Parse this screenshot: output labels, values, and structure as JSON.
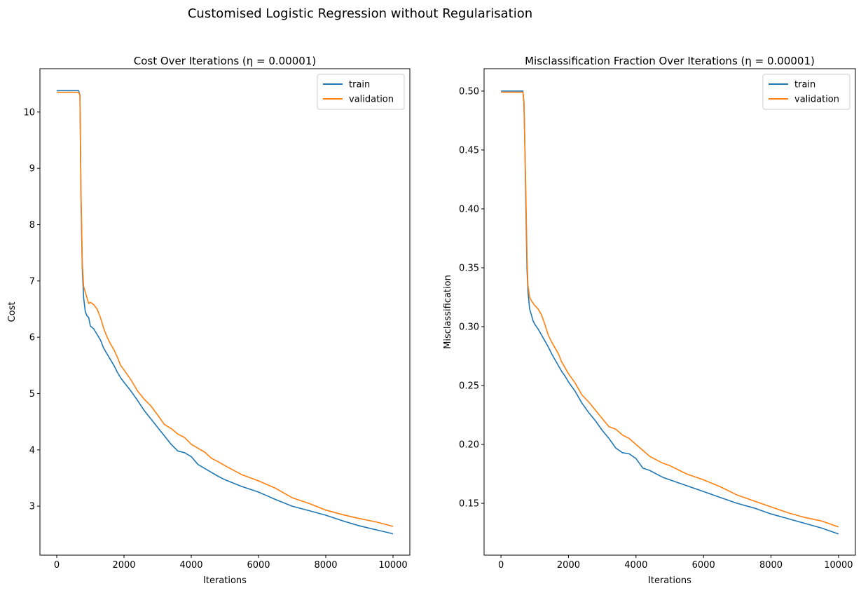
{
  "figure": {
    "title": "Customised Logistic Regression without Regularisation"
  },
  "chart_data": [
    {
      "type": "line",
      "title": "Cost Over Iterations (η = 0.00001)",
      "xlabel": "Iterations",
      "ylabel": "Cost",
      "xlim": [
        -500,
        10500
      ],
      "ylim": [
        2.13,
        10.77
      ],
      "xticks": [
        0,
        2000,
        4000,
        6000,
        8000,
        10000
      ],
      "yticks": [
        3,
        4,
        5,
        6,
        7,
        8,
        9,
        10
      ],
      "grid": false,
      "legend_position": "upper right",
      "series": [
        {
          "name": "train",
          "color": "#1f77b4",
          "x": [
            0,
            650,
            690,
            720,
            760,
            800,
            850,
            900,
            950,
            1000,
            1100,
            1200,
            1300,
            1400,
            1500,
            1600,
            1700,
            1800,
            1900,
            2000,
            2200,
            2400,
            2600,
            2800,
            3000,
            3200,
            3400,
            3600,
            3800,
            4000,
            4200,
            4400,
            4600,
            4800,
            5000,
            5500,
            6000,
            6500,
            7000,
            7500,
            8000,
            8500,
            9000,
            9500,
            10000
          ],
          "y": [
            10.38,
            10.38,
            10.3,
            8.5,
            7.2,
            6.7,
            6.45,
            6.38,
            6.35,
            6.2,
            6.15,
            6.05,
            5.95,
            5.8,
            5.7,
            5.6,
            5.5,
            5.38,
            5.28,
            5.2,
            5.05,
            4.88,
            4.7,
            4.55,
            4.4,
            4.25,
            4.1,
            3.98,
            3.95,
            3.88,
            3.74,
            3.67,
            3.6,
            3.53,
            3.47,
            3.35,
            3.25,
            3.12,
            3.0,
            2.92,
            2.84,
            2.74,
            2.65,
            2.58,
            2.51
          ]
        },
        {
          "name": "validation",
          "color": "#ff7f0e",
          "x": [
            0,
            650,
            690,
            720,
            760,
            800,
            850,
            900,
            950,
            1000,
            1100,
            1200,
            1300,
            1400,
            1500,
            1600,
            1700,
            1800,
            1900,
            2000,
            2200,
            2400,
            2600,
            2800,
            3000,
            3200,
            3400,
            3600,
            3800,
            4000,
            4200,
            4400,
            4600,
            4800,
            5000,
            5500,
            6000,
            6500,
            7000,
            7500,
            8000,
            8500,
            9000,
            9500,
            10000
          ],
          "y": [
            10.35,
            10.35,
            10.3,
            8.6,
            7.3,
            6.9,
            6.8,
            6.7,
            6.6,
            6.62,
            6.58,
            6.5,
            6.35,
            6.15,
            6.0,
            5.88,
            5.78,
            5.65,
            5.5,
            5.42,
            5.25,
            5.05,
            4.9,
            4.78,
            4.62,
            4.45,
            4.38,
            4.28,
            4.22,
            4.1,
            4.03,
            3.96,
            3.85,
            3.79,
            3.72,
            3.56,
            3.45,
            3.32,
            3.15,
            3.05,
            2.93,
            2.85,
            2.78,
            2.72,
            2.64
          ]
        }
      ]
    },
    {
      "type": "line",
      "title": "Misclassification Fraction Over Iterations (η = 0.00001)",
      "xlabel": "Iterations",
      "ylabel": "Misclassification",
      "xlim": [
        -500,
        10500
      ],
      "ylim": [
        0.106,
        0.519
      ],
      "xticks": [
        0,
        2000,
        4000,
        6000,
        8000,
        10000
      ],
      "yticks": [
        0.15,
        0.2,
        0.25,
        0.3,
        0.35,
        0.4,
        0.45,
        0.5
      ],
      "grid": false,
      "legend_position": "upper right",
      "series": [
        {
          "name": "train",
          "color": "#1f77b4",
          "x": [
            0,
            650,
            680,
            710,
            740,
            770,
            800,
            850,
            900,
            950,
            1000,
            1100,
            1200,
            1300,
            1400,
            1500,
            1600,
            1700,
            1800,
            1900,
            2000,
            2200,
            2400,
            2600,
            2800,
            3000,
            3200,
            3400,
            3600,
            3800,
            4000,
            4200,
            4400,
            4600,
            4800,
            5000,
            5500,
            6000,
            6500,
            7000,
            7500,
            8000,
            8500,
            9000,
            9500,
            10000
          ],
          "y": [
            0.5,
            0.5,
            0.49,
            0.45,
            0.4,
            0.35,
            0.33,
            0.315,
            0.31,
            0.305,
            0.302,
            0.298,
            0.293,
            0.288,
            0.283,
            0.277,
            0.272,
            0.267,
            0.262,
            0.258,
            0.253,
            0.245,
            0.235,
            0.227,
            0.22,
            0.212,
            0.205,
            0.197,
            0.193,
            0.192,
            0.188,
            0.18,
            0.178,
            0.175,
            0.172,
            0.17,
            0.165,
            0.16,
            0.155,
            0.15,
            0.146,
            0.141,
            0.137,
            0.133,
            0.129,
            0.124
          ]
        },
        {
          "name": "validation",
          "color": "#ff7f0e",
          "x": [
            0,
            650,
            680,
            710,
            740,
            770,
            800,
            850,
            900,
            950,
            1000,
            1100,
            1200,
            1300,
            1400,
            1500,
            1600,
            1700,
            1800,
            1900,
            2000,
            2200,
            2400,
            2600,
            2800,
            3000,
            3200,
            3400,
            3600,
            3800,
            4000,
            4200,
            4400,
            4600,
            4800,
            5000,
            5500,
            6000,
            6500,
            7000,
            7500,
            8000,
            8500,
            9000,
            9500,
            10000
          ],
          "y": [
            0.499,
            0.499,
            0.49,
            0.45,
            0.41,
            0.36,
            0.335,
            0.325,
            0.322,
            0.32,
            0.318,
            0.315,
            0.31,
            0.302,
            0.293,
            0.287,
            0.282,
            0.277,
            0.27,
            0.265,
            0.26,
            0.252,
            0.242,
            0.236,
            0.229,
            0.222,
            0.215,
            0.213,
            0.208,
            0.205,
            0.2,
            0.195,
            0.19,
            0.187,
            0.184,
            0.182,
            0.175,
            0.17,
            0.164,
            0.157,
            0.152,
            0.147,
            0.142,
            0.138,
            0.135,
            0.13
          ]
        }
      ]
    }
  ]
}
